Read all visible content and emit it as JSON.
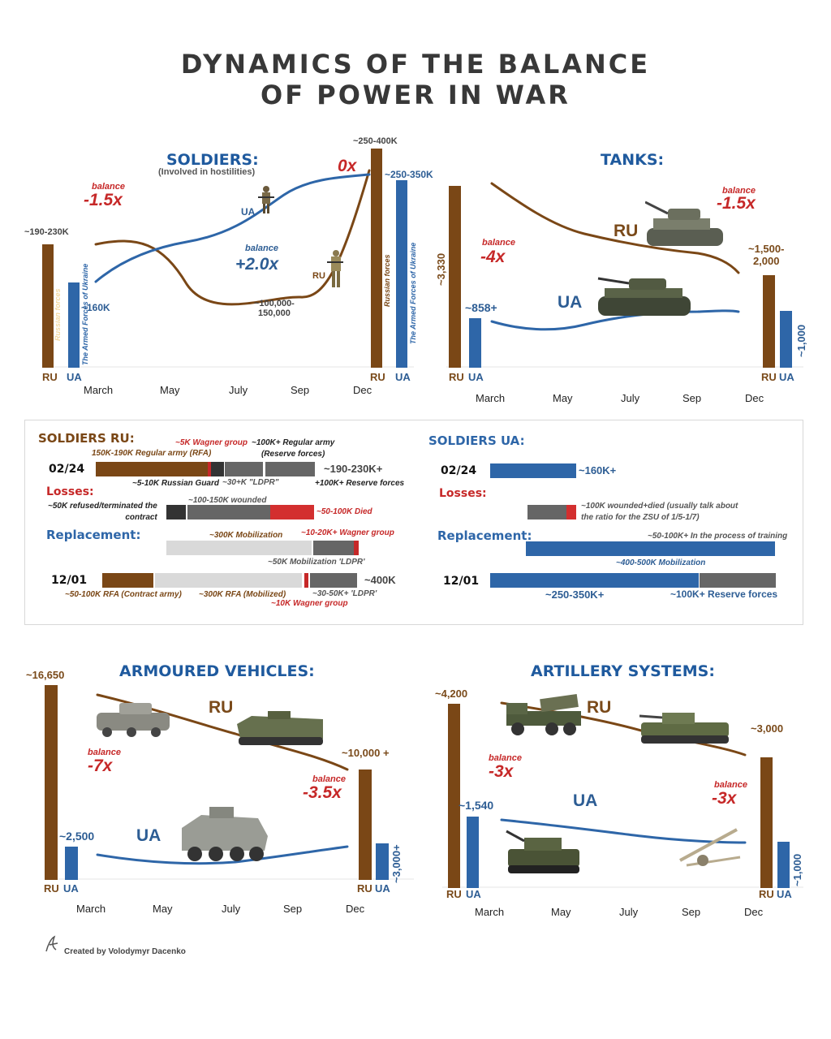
{
  "title": {
    "line1": "DYNAMICS OF THE BALANCE",
    "line2": "OF POWER IN WAR"
  },
  "months": [
    "March",
    "May",
    "July",
    "Sep",
    "Dec"
  ],
  "colors": {
    "ru": "#7a4716",
    "ua": "#2e66a8",
    "balance": "#c62828",
    "reserve": "#666666",
    "died": "#d32f2f",
    "mobilized": "#d9d9d9",
    "guard": "#333333"
  },
  "soldiers": {
    "title": "SOLDIERS:",
    "subtitle": "(Involved in hostilities)",
    "ru_start": "~190-230K",
    "ua_start": "~160K",
    "ru_end": "~250-400K",
    "ua_end": "~250-350K",
    "mid": "~100,000-\n150,000",
    "balance_word": "balance",
    "balance1": "-1.5x",
    "balance2": "+2.0x",
    "balance3": "0x",
    "ua_label": "UA",
    "ru_label": "RU",
    "bar_ru_text": "Russian forces",
    "bar_ua_text": "The Armed Forces of Ukraine",
    "ax_ru": "RU",
    "ax_ua": "UA"
  },
  "tanks": {
    "title": "TANKS:",
    "ru_start": "~3,330",
    "ua_start": "~858+",
    "ru_end": "~1,500-\n2,000",
    "ua_end": "~1,000",
    "balance_word": "balance",
    "balance1": "-4x",
    "balance2": "-1.5x",
    "ru_label": "RU",
    "ua_label": "UA",
    "ax_ru": "RU",
    "ax_ua": "UA"
  },
  "soldiers_ru": {
    "title": "SOLDIERS RU:",
    "d1": "02/24",
    "d2": "12/01",
    "losses": "Losses:",
    "replacement": "Replacement:",
    "n_wagner5": "~5K Wagner group",
    "n_regular": "~100K+ Regular army\n(Reserve forces)",
    "n_rfa": "150K-190K Regular army (RFA)",
    "total1": "~190-230K+",
    "n_guard": "~5-10K Russian Guard",
    "n_ldpr30": "~30+K \"LDPR\"",
    "n_reserve": "+100K+ Reserve forces",
    "n_refused": "~50K refused/terminated the\ncontract",
    "n_wounded": "~100-150K wounded",
    "n_died": "~50-100K Died",
    "n_mob300": "~300K Mobilization",
    "n_wag1020": "~10-20K+ Wagner group",
    "n_mobldpr": "~50K Mobilization 'LDPR'",
    "total2": "~400K",
    "n_rfa_contract": "~50-100K RFA (Contract army)",
    "n_rfa_mob": "~300K RFA (Mobilized)",
    "n_wag10": "~10K Wagner group",
    "n_ldpr3050": "~30-50K+ 'LDPR'"
  },
  "soldiers_ua": {
    "title": "SOLDIERS UA:",
    "d1": "02/24",
    "d2": "12/01",
    "total1": "~160K+",
    "losses": "Losses:",
    "n_wounded": "~100K wounded+died (usually talk about\nthe ratio for the ZSU of 1/5-1/7)",
    "replacement": "Replacement:",
    "n_training": "~50-100K+ In the process of training",
    "n_mob": "~400-500K Mobilization",
    "n_main": "~250-350K+",
    "n_reserve": "~100K+ Reserve forces"
  },
  "armoured": {
    "title": "ARMOURED VEHICLES:",
    "ru_start": "~16,650",
    "ua_start": "~2,500",
    "ru_end": "~10,000 +",
    "ua_end": "~3,000+",
    "balance_word": "balance",
    "balance1": "-7x",
    "balance2": "-3.5x",
    "ru_label": "RU",
    "ua_label": "UA",
    "ax_ru": "RU",
    "ax_ua": "UA"
  },
  "artillery": {
    "title": "ARTILLERY SYSTEMS:",
    "ru_start": "~4,200",
    "ua_start": "~1,540",
    "ru_end": "~3,000",
    "ua_end": "~1,000",
    "balance_word": "balance",
    "balance1": "-3x",
    "balance2": "-3x",
    "ru_label": "RU",
    "ua_label": "UA",
    "ax_ru": "RU",
    "ax_ua": "UA"
  },
  "credit": "Created by Volodymyr Dacenko",
  "chart_data": [
    {
      "type": "line",
      "title": "SOLDIERS:",
      "x": [
        "March",
        "May",
        "July",
        "Sep",
        "Dec"
      ],
      "series": [
        {
          "name": "RU",
          "values": [
            210000,
            190000,
            140000,
            125000,
            325000
          ]
        },
        {
          "name": "UA",
          "values": [
            160000,
            220000,
            250000,
            290000,
            300000
          ]
        }
      ],
      "bars": {
        "RU_start": "~190-230K",
        "UA_start": "~160K",
        "RU_end": "~250-400K",
        "UA_end": "~250-350K"
      }
    },
    {
      "type": "line",
      "title": "TANKS:",
      "x": [
        "March",
        "May",
        "July",
        "Sep",
        "Dec"
      ],
      "series": [
        {
          "name": "RU",
          "values": [
            3330,
            2600,
            2100,
            1900,
            1750
          ]
        },
        {
          "name": "UA",
          "values": [
            858,
            850,
            950,
            1000,
            1000
          ]
        }
      ]
    },
    {
      "type": "line",
      "title": "ARMOURED VEHICLES:",
      "x": [
        "March",
        "May",
        "July",
        "Sep",
        "Dec"
      ],
      "series": [
        {
          "name": "RU",
          "values": [
            16650,
            15000,
            13000,
            11500,
            10000
          ]
        },
        {
          "name": "UA",
          "values": [
            2500,
            2400,
            2500,
            2800,
            3000
          ]
        }
      ]
    },
    {
      "type": "line",
      "title": "ARTILLERY SYSTEMS:",
      "x": [
        "March",
        "May",
        "July",
        "Sep",
        "Dec"
      ],
      "series": [
        {
          "name": "RU",
          "values": [
            4200,
            3900,
            3600,
            3300,
            3000
          ]
        },
        {
          "name": "UA",
          "values": [
            1540,
            1400,
            1250,
            1100,
            1000
          ]
        }
      ]
    }
  ]
}
